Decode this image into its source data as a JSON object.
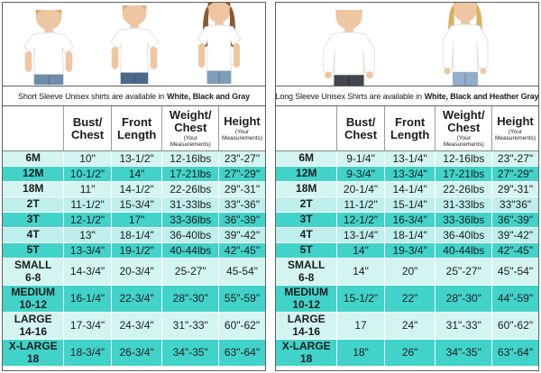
{
  "palette": {
    "row_light": "#d3f5f2",
    "row_mid": "#bfefec",
    "row_dark": "#41d3c9",
    "table_border": "#5f5f5f",
    "header_divider": "#9a9a9a",
    "text": "#1c1c1c"
  },
  "panels": [
    {
      "id": "short-sleeve",
      "photos": {
        "figure_names": [
          "toddler-short-sleeve-tee",
          "child-short-sleeve-tee",
          "girl-short-sleeve-tee"
        ]
      },
      "caption": {
        "prefix": "Short Sleeve Unisex shirts are available in",
        "bold": "White, Black and Gray"
      },
      "table": {
        "columns": [
          {
            "key": "size",
            "lines": []
          },
          {
            "key": "bust-chest",
            "lines": [
              "Bust/",
              "Chest"
            ]
          },
          {
            "key": "front-length",
            "lines": [
              "Front",
              "Length"
            ]
          },
          {
            "key": "weight-chest",
            "lines": [
              "Weight/",
              "Chest"
            ],
            "note": [
              "(Your",
              "Measurements)"
            ]
          },
          {
            "key": "height",
            "lines": [
              "Height"
            ],
            "note": [
              "(Your",
              "Measurements)"
            ]
          }
        ],
        "rows": [
          {
            "size_lines": [
              "6M"
            ],
            "shade": "light",
            "values": [
              "10\"",
              "13-1/2\"",
              "12-16lbs",
              "23\"-27\""
            ]
          },
          {
            "size_lines": [
              "12M"
            ],
            "shade": "dark",
            "values": [
              "10-1/2\"",
              "14\"",
              "17-21lbs",
              "27\"-29\""
            ]
          },
          {
            "size_lines": [
              "18M"
            ],
            "shade": "light",
            "values": [
              "11\"",
              "14-1/2\"",
              "22-26lbs",
              "29\"-31\""
            ]
          },
          {
            "size_lines": [
              "2T"
            ],
            "shade": "mid",
            "values": [
              "11-1/2\"",
              "15-3/4\"",
              "31-33lbs",
              "33\"-36\""
            ]
          },
          {
            "size_lines": [
              "3T"
            ],
            "shade": "dark",
            "values": [
              "12-1/2\"",
              "17\"",
              "33-36lbs",
              "36\"-39\""
            ]
          },
          {
            "size_lines": [
              "4T"
            ],
            "shade": "mid",
            "values": [
              "13\"",
              "18-1/4\"",
              "36-40lbs",
              "39\"-42\""
            ]
          },
          {
            "size_lines": [
              "5T"
            ],
            "shade": "dark",
            "values": [
              "13-3/4\"",
              "19-1/2\"",
              "40-44lbs",
              "42\"-45\""
            ]
          },
          {
            "size_lines": [
              "SMALL",
              "6-8"
            ],
            "shade": "light",
            "values": [
              "14-3/4\"",
              "20-3/4\"",
              "25-27\"",
              "45-54\""
            ]
          },
          {
            "size_lines": [
              "MEDIUM",
              "10-12"
            ],
            "shade": "dark",
            "values": [
              "16-1/4\"",
              "22-3/4\"",
              "28\"-30\"",
              "55\"-59\""
            ]
          },
          {
            "size_lines": [
              "LARGE",
              "14-16"
            ],
            "shade": "light",
            "values": [
              "17-3/4\"",
              "24-3/4\"",
              "31\"-33\"",
              "60\"-62\""
            ]
          },
          {
            "size_lines": [
              "X-LARGE",
              "18"
            ],
            "shade": "dark",
            "values": [
              "18-3/4\"",
              "26-3/4\"",
              "34\"-35\"",
              "63\"-64\""
            ]
          }
        ]
      }
    },
    {
      "id": "long-sleeve",
      "photos": {
        "figure_names": [
          "toddler-long-sleeve-shirt",
          "girl-long-sleeve-shirt"
        ]
      },
      "caption": {
        "prefix": "Long Sleeve Unisex Shirts are available in",
        "bold": "White, Black and Heather Gray"
      },
      "table": {
        "columns": [
          {
            "key": "size",
            "lines": []
          },
          {
            "key": "bust-chest",
            "lines": [
              "Bust/",
              "Chest"
            ]
          },
          {
            "key": "front-length",
            "lines": [
              "Front",
              "Length"
            ]
          },
          {
            "key": "weight-chest",
            "lines": [
              "Weight/",
              "Chest"
            ],
            "note": [
              "(Your",
              "Measurements)"
            ]
          },
          {
            "key": "height",
            "lines": [
              "Height"
            ],
            "note": [
              "(Your",
              "Measurements)"
            ]
          }
        ],
        "rows": [
          {
            "size_lines": [
              "6M"
            ],
            "shade": "light",
            "values": [
              "9-1/4\"",
              "13-1/4\"",
              "12-16lbs",
              "23\"-27\""
            ]
          },
          {
            "size_lines": [
              "12M"
            ],
            "shade": "dark",
            "values": [
              "9-3/4\"",
              "13-3/4\"",
              "17-21lbs",
              "27\"-29\""
            ]
          },
          {
            "size_lines": [
              "18M"
            ],
            "shade": "light",
            "values": [
              "20-1/4\"",
              "14-1/4\"",
              "22-26lbs",
              "29\"-31\""
            ]
          },
          {
            "size_lines": [
              "2T"
            ],
            "shade": "mid",
            "values": [
              "11-1/2\"",
              "15-1/4\"",
              "31-33lbs",
              "33\"36\""
            ]
          },
          {
            "size_lines": [
              "3T"
            ],
            "shade": "dark",
            "values": [
              "12-1/2\"",
              "16-3/4\"",
              "33-36lbs",
              "36\"-39\""
            ]
          },
          {
            "size_lines": [
              "4T"
            ],
            "shade": "mid",
            "values": [
              "13-1/4\"",
              "18-1/4\"",
              "36-40lbs",
              "39\"-42\""
            ]
          },
          {
            "size_lines": [
              "5T"
            ],
            "shade": "dark",
            "values": [
              "14\"",
              "19-3/4\"",
              "40-44lbs",
              "42\"-45\""
            ]
          },
          {
            "size_lines": [
              "SMALL",
              "6-8"
            ],
            "shade": "light",
            "values": [
              "14\"",
              "20\"",
              "25\"-27\"",
              "45\"-54\""
            ]
          },
          {
            "size_lines": [
              "MEDIUM",
              "10-12"
            ],
            "shade": "dark",
            "values": [
              "15-1/2\"",
              "22\"",
              "28\"-30\"",
              "44\"-59\""
            ]
          },
          {
            "size_lines": [
              "LARGE",
              "14-16"
            ],
            "shade": "light",
            "values": [
              "17",
              "24\"",
              "31\"-33\"",
              "60\"-62\""
            ]
          },
          {
            "size_lines": [
              "X-LARGE",
              "18"
            ],
            "shade": "dark",
            "values": [
              "18\"",
              "26\"",
              "34\"-35\"",
              "63\"-64\""
            ]
          }
        ]
      }
    }
  ]
}
